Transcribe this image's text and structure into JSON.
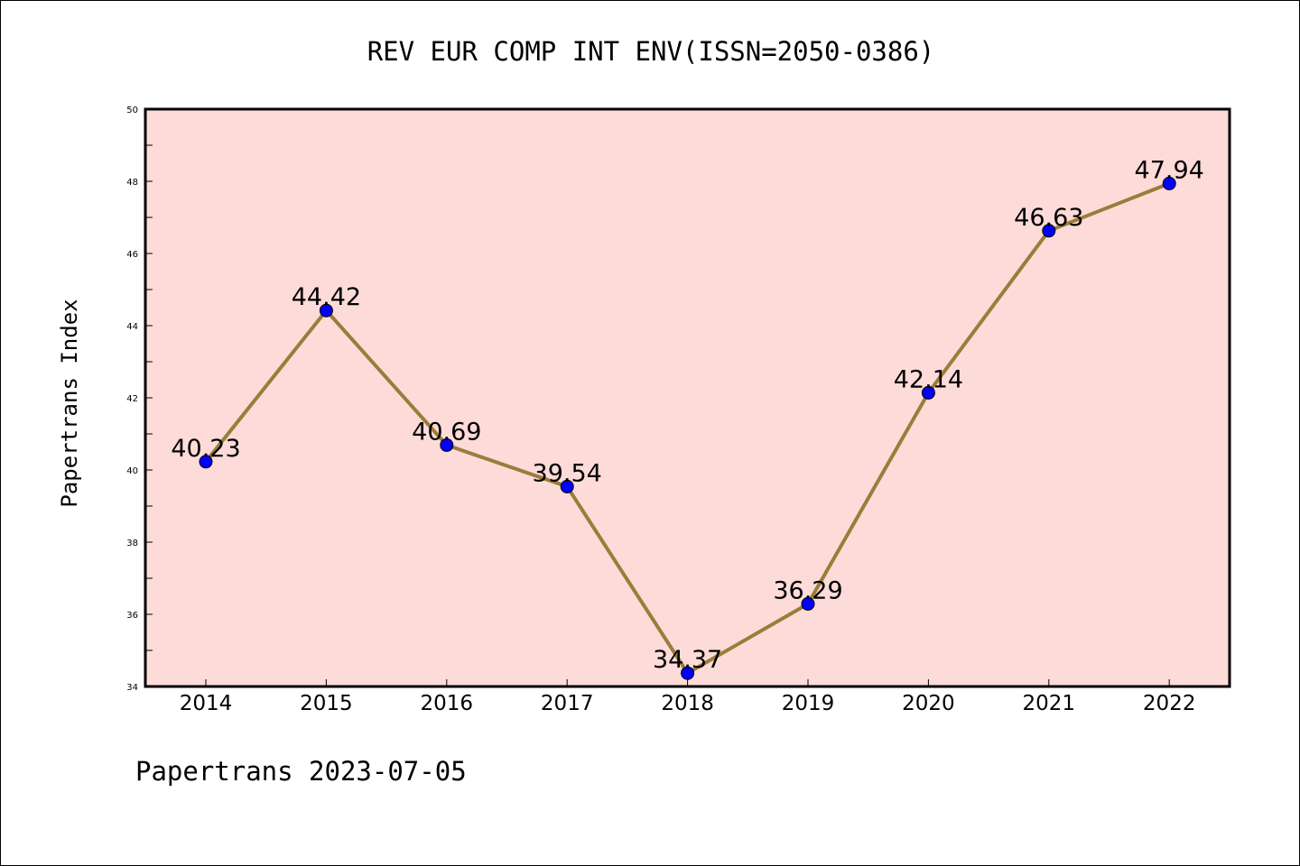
{
  "chart_data": {
    "type": "line",
    "title": "REV EUR COMP INT ENV(ISSN=2050-0386)",
    "xlabel": "",
    "ylabel": "Papertrans Index",
    "footer": "Papertrans 2023-07-05",
    "categories": [
      "2014",
      "2015",
      "2016",
      "2017",
      "2018",
      "2019",
      "2020",
      "2021",
      "2022"
    ],
    "values": [
      40.23,
      44.42,
      40.69,
      39.54,
      34.37,
      36.29,
      42.14,
      46.63,
      47.94
    ],
    "value_labels": [
      "40.23",
      "44.42",
      "40.69",
      "39.54",
      "34.37",
      "36.29",
      "42.14",
      "46.63",
      "47.94"
    ],
    "ylim": [
      34,
      50
    ],
    "yticks": [
      "34",
      "36",
      "38",
      "40",
      "42",
      "44",
      "46",
      "48",
      "50"
    ],
    "grid": false,
    "colors": {
      "plot_background": "#fddbd9",
      "line": "#9a7d3a",
      "marker": "#0000ff"
    }
  }
}
